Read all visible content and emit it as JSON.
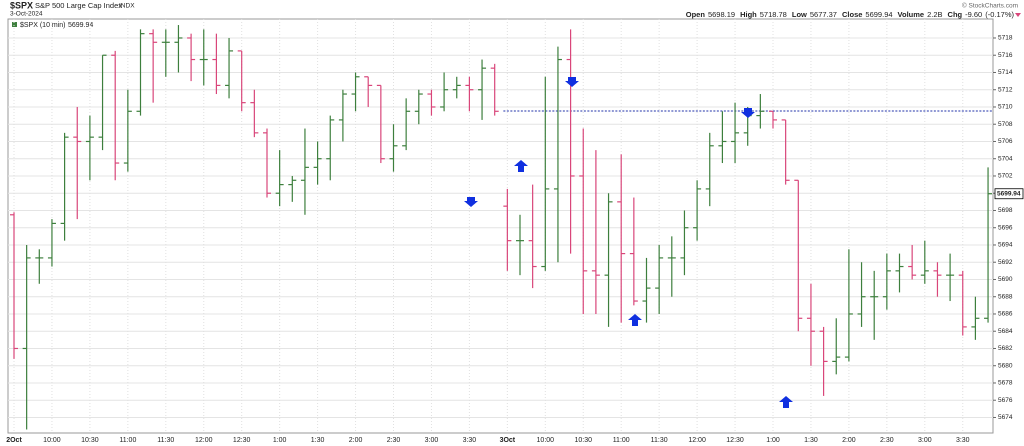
{
  "chart_data": {
    "type": "ohlc",
    "symbol": "$SPX",
    "name": "S&P 500 Large Cap Index",
    "exchange": "INDX",
    "date": "3-Oct-2024",
    "quote": [
      {
        "name": "Open",
        "value": 5698.19
      },
      {
        "name": "High",
        "value": 5718.78
      },
      {
        "name": "Low",
        "value": 5677.37
      },
      {
        "name": "Close",
        "value": 5699.94
      },
      {
        "name": "Volume",
        "value": 2200000000,
        "value_label": "2.2B"
      },
      {
        "name": "Chg",
        "value": -9.6,
        "value_label": "-9.60",
        "percent": -0.17,
        "percent_label": "(-0.17%)"
      }
    ],
    "copyright": "© StockCharts.com",
    "legend": "$SPX (10 min)",
    "last": 5699.94,
    "reference_line": 5709.54,
    "up_color": "#3d7f3d",
    "down_color": "#d9467a",
    "reference_color": "#2233aa",
    "categories": [
      "2Oct",
      null,
      null,
      "10:00",
      null,
      null,
      "10:30",
      null,
      null,
      "11:00",
      null,
      null,
      "11:30",
      null,
      null,
      "12:00",
      null,
      null,
      "12:30",
      null,
      null,
      "1:00",
      null,
      null,
      "1:30",
      null,
      null,
      "2:00",
      null,
      null,
      "2:30",
      null,
      null,
      "3:00",
      null,
      null,
      "3:30",
      null,
      null,
      "3Oct",
      null,
      null,
      "10:00",
      null,
      null,
      "10:30",
      null,
      null,
      "11:00",
      null,
      null,
      "11:30",
      null,
      null,
      "12:00",
      null,
      null,
      "12:30",
      null,
      null,
      "1:00",
      null,
      null,
      "1:30",
      null,
      null,
      "2:00",
      null,
      null,
      "2:30",
      null,
      null,
      "3:00",
      null,
      null,
      "3:30",
      null,
      null
    ],
    "open": [
      5697.5,
      5682,
      5692.5,
      5692.5,
      5696.5,
      5706.5,
      5706,
      5706.5,
      5716,
      5703.5,
      5709.5,
      5718.5,
      5717.5,
      5717.5,
      5718,
      5715.5,
      5715.5,
      5712.5,
      5716.5,
      5710.5,
      5707,
      5700,
      5701,
      5701.5,
      5703,
      5704,
      5708.5,
      5711.5,
      5713.5,
      5712.5,
      5704,
      5705.5,
      5709.5,
      5711.5,
      5710,
      5712,
      5712.5,
      5712,
      5714.5,
      5698.5,
      5694.5,
      5694.5,
      5691.5,
      5700.5,
      5715.5,
      5702,
      5691,
      5690.5,
      5699,
      5693,
      5687.5,
      5689,
      5692.5,
      5692.5,
      5696,
      5700.5,
      5705.5,
      5706,
      5707,
      5709,
      5709.5,
      5708.5,
      5701.5,
      5685.5,
      5684,
      5680.5,
      5681,
      5686,
      5688,
      5688,
      5691,
      5691.5,
      5690.5,
      5691,
      5690.5,
      5690.5,
      5684.5,
      5685.5
    ],
    "high": [
      5697.8,
      5694,
      5693.5,
      5697,
      5707,
      5710,
      5709,
      5716,
      5716.5,
      5712,
      5719,
      5719,
      5719,
      5719.5,
      5718.5,
      5719,
      5718.5,
      5718,
      5716.5,
      5712,
      5707.5,
      5705,
      5702,
      5707.5,
      5706,
      5709,
      5712,
      5714,
      5713.5,
      5712.5,
      5708,
      5711,
      5712,
      5712,
      5714,
      5713.5,
      5713.5,
      5715.5,
      5715,
      5700.5,
      5697.5,
      5701,
      5713.5,
      5717,
      5719,
      5707.5,
      5705,
      5700,
      5704.5,
      5699.5,
      5692.5,
      5694,
      5695,
      5698,
      5701.5,
      5707,
      5709.5,
      5710.5,
      5710,
      5711.5,
      5709.5,
      5708.5,
      5701.5,
      5689.5,
      5684.5,
      5685.5,
      5693.5,
      5692,
      5691,
      5693,
      5693,
      5694,
      5694.5,
      5692,
      5693,
      5691,
      5688,
      5703
    ],
    "low": [
      5680.8,
      5672.6,
      5689.5,
      5691.5,
      5694.5,
      5697,
      5701.5,
      5705,
      5701.5,
      5702.5,
      5709,
      5710.5,
      5713.5,
      5714,
      5713,
      5712.5,
      5711.5,
      5711,
      5709.5,
      5706.5,
      5699.5,
      5698.5,
      5699,
      5697.5,
      5701,
      5701.5,
      5706,
      5709.5,
      5710,
      5703.5,
      5702.5,
      5705,
      5708,
      5709,
      5709.5,
      5711,
      5709.5,
      5708.5,
      5709,
      5691,
      5690.5,
      5689,
      5691,
      5692,
      5693,
      5686,
      5686,
      5684.5,
      5685,
      5687,
      5685,
      5686,
      5688,
      5690.5,
      5694.5,
      5698.5,
      5703.5,
      5703.5,
      5705.5,
      5707.5,
      5707.5,
      5701,
      5684,
      5680,
      5676.5,
      5679,
      5680.5,
      5684.5,
      5683,
      5686.5,
      5688.5,
      5690,
      5689.5,
      5688,
      5687.5,
      5683.5,
      5683,
      5685
    ],
    "close": [
      5682,
      5692.5,
      5692.5,
      5696.5,
      5706.5,
      5706,
      5706.5,
      5716,
      5703.5,
      5709.5,
      5718.5,
      5717.5,
      5717.5,
      5718,
      5715.5,
      5715.5,
      5712.5,
      5716.5,
      5710.5,
      5707,
      5700,
      5701,
      5701.5,
      5703,
      5704,
      5708.5,
      5711.5,
      5713.5,
      5712.5,
      5704,
      5705.5,
      5709.5,
      5711.5,
      5710,
      5712,
      5712.5,
      5712,
      5714.5,
      5709.5,
      5694.5,
      5694.5,
      5691.5,
      5700.5,
      5715.5,
      5702,
      5691,
      5690.5,
      5699,
      5693,
      5687.5,
      5689,
      5692.5,
      5692.5,
      5696,
      5700.5,
      5705.5,
      5706,
      5707,
      5709,
      5709.5,
      5708.5,
      5701.5,
      5685.5,
      5684,
      5680.5,
      5681,
      5686,
      5688,
      5688,
      5691,
      5691.5,
      5690.5,
      5691,
      5690.5,
      5690.5,
      5684.5,
      5685.5,
      5699.94
    ],
    "ylim": [
      5672.2,
      5720.2
    ],
    "yticks": [
      5674,
      5676,
      5678,
      5680,
      5682,
      5684,
      5686,
      5688,
      5690,
      5692,
      5694,
      5696,
      5698,
      5700,
      5702,
      5704,
      5706,
      5708,
      5710,
      5712,
      5714,
      5716,
      5718
    ],
    "grid": true
  }
}
